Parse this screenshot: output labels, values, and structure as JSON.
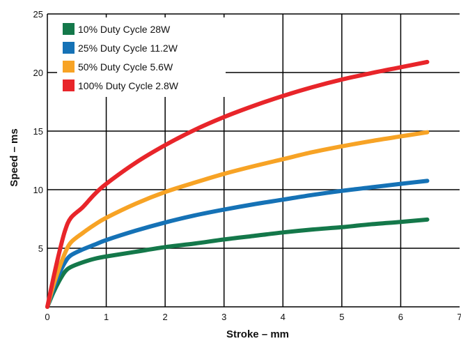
{
  "chart_data": {
    "type": "line",
    "xlabel": "Stroke – mm",
    "ylabel": "Speed – ms",
    "xlim": [
      0,
      7
    ],
    "ylim": [
      0,
      25
    ],
    "xticks": [
      "0",
      "1",
      "2",
      "3",
      "4",
      "5",
      "6",
      "7"
    ],
    "yticks": [
      "5",
      "10",
      "15",
      "20",
      "25"
    ],
    "grid": true,
    "legend_position": "top-left",
    "series": [
      {
        "name": "10% Duty Cycle 28W",
        "color": "#14784a",
        "x": [
          0,
          0.1,
          0.2,
          0.3,
          0.4,
          0.6,
          0.8,
          1.0,
          1.5,
          2.0,
          2.5,
          3.0,
          3.5,
          4.0,
          4.5,
          5.0,
          5.5,
          6.0,
          6.45
        ],
        "y": [
          0,
          1.2,
          2.2,
          3.0,
          3.4,
          3.8,
          4.1,
          4.3,
          4.7,
          5.1,
          5.4,
          5.75,
          6.05,
          6.35,
          6.6,
          6.8,
          7.05,
          7.25,
          7.45
        ]
      },
      {
        "name": "25% Duty Cycle 11.2W",
        "color": "#1572b6",
        "x": [
          0,
          0.1,
          0.2,
          0.3,
          0.4,
          0.6,
          0.8,
          1.0,
          1.5,
          2.0,
          2.5,
          3.0,
          3.5,
          4.0,
          4.5,
          5.0,
          5.5,
          6.0,
          6.45
        ],
        "y": [
          0,
          1.5,
          2.8,
          3.8,
          4.4,
          4.9,
          5.3,
          5.7,
          6.5,
          7.2,
          7.8,
          8.3,
          8.75,
          9.15,
          9.55,
          9.9,
          10.2,
          10.5,
          10.75
        ]
      },
      {
        "name": "50% Duty Cycle 5.6W",
        "color": "#f7a325",
        "x": [
          0,
          0.1,
          0.2,
          0.3,
          0.4,
          0.6,
          0.8,
          1.0,
          1.5,
          2.0,
          2.5,
          3.0,
          3.5,
          4.0,
          4.5,
          5.0,
          5.5,
          6.0,
          6.45
        ],
        "y": [
          0,
          1.8,
          3.3,
          4.6,
          5.5,
          6.3,
          7.0,
          7.6,
          8.8,
          9.8,
          10.6,
          11.35,
          12.0,
          12.6,
          13.2,
          13.7,
          14.15,
          14.55,
          14.9
        ]
      },
      {
        "name": "100% Duty Cycle 2.8W",
        "color": "#e8252a",
        "x": [
          0,
          0.1,
          0.2,
          0.3,
          0.4,
          0.6,
          0.8,
          1.0,
          1.5,
          2.0,
          2.5,
          3.0,
          3.5,
          4.0,
          4.5,
          5.0,
          5.5,
          6.0,
          6.45
        ],
        "y": [
          0,
          2.4,
          4.6,
          6.5,
          7.6,
          8.5,
          9.6,
          10.5,
          12.3,
          13.8,
          15.1,
          16.2,
          17.15,
          18.0,
          18.75,
          19.4,
          19.95,
          20.45,
          20.9
        ]
      }
    ]
  }
}
